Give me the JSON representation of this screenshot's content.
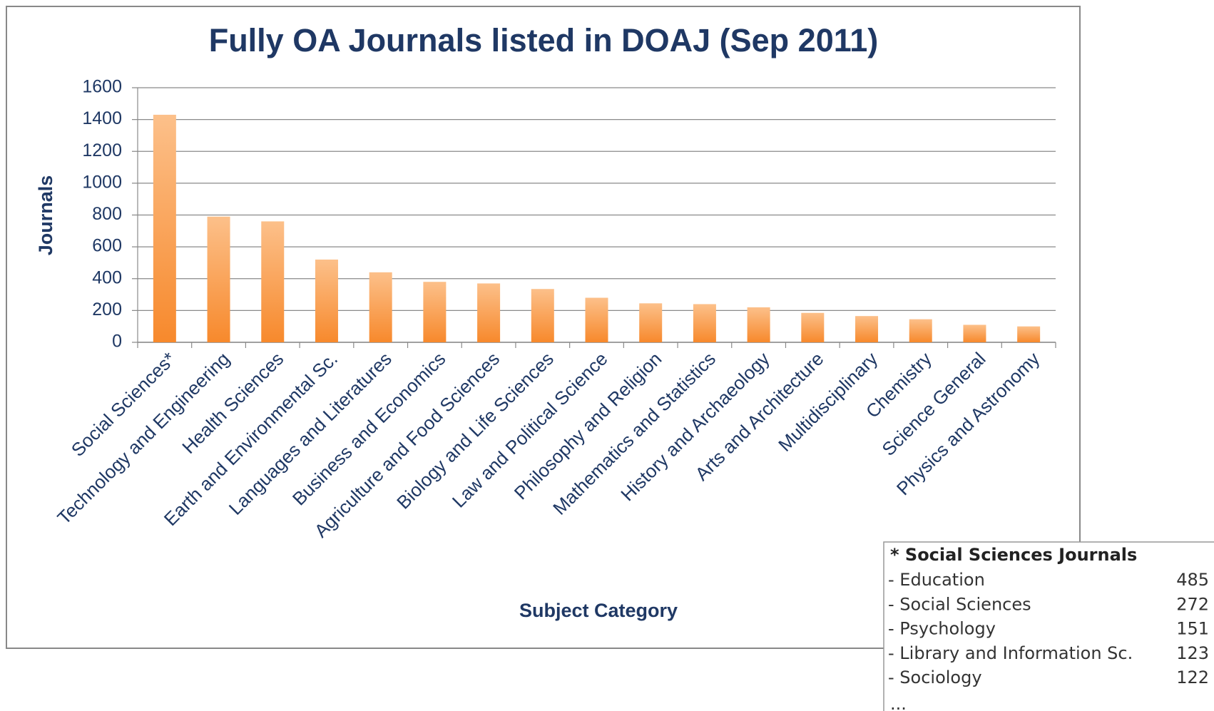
{
  "chart_data": {
    "type": "bar",
    "title": "Fully OA Journals listed in DOAJ (Sep 2011)",
    "x_label": "Subject Category",
    "y_label": "Journals",
    "categories": [
      "Social Sciences*",
      "Technology and Engineering",
      "Health Sciences",
      "Earth and Environmental Sc.",
      "Languages and Literatures",
      "Business and Economics",
      "Agriculture and Food Sciences",
      "Biology and Life Sciences",
      "Law and Political Science",
      "Philosophy and Religion",
      "Mathematics and Statistics",
      "History and Archaeology",
      "Arts and Architecture",
      "Multidisciplinary",
      "Chemistry",
      "Science General",
      "Physics and Astronomy"
    ],
    "values": [
      1430,
      790,
      760,
      520,
      440,
      380,
      370,
      335,
      280,
      245,
      240,
      220,
      185,
      165,
      145,
      110,
      100
    ],
    "color": "#f7892c",
    "ylim": [
      0,
      1600
    ],
    "yticks": [
      0,
      200,
      400,
      600,
      800,
      1000,
      1200,
      1400,
      1600
    ],
    "grid": true
  },
  "inset": {
    "title": "* Social Sciences Journals",
    "rows": [
      [
        "- Education",
        "485"
      ],
      [
        "- Social Sciences",
        "272"
      ],
      [
        "- Psychology",
        "151"
      ],
      [
        "- Library and Information Sc.",
        "123"
      ],
      [
        "- Sociology",
        "122"
      ]
    ],
    "more": "..."
  }
}
